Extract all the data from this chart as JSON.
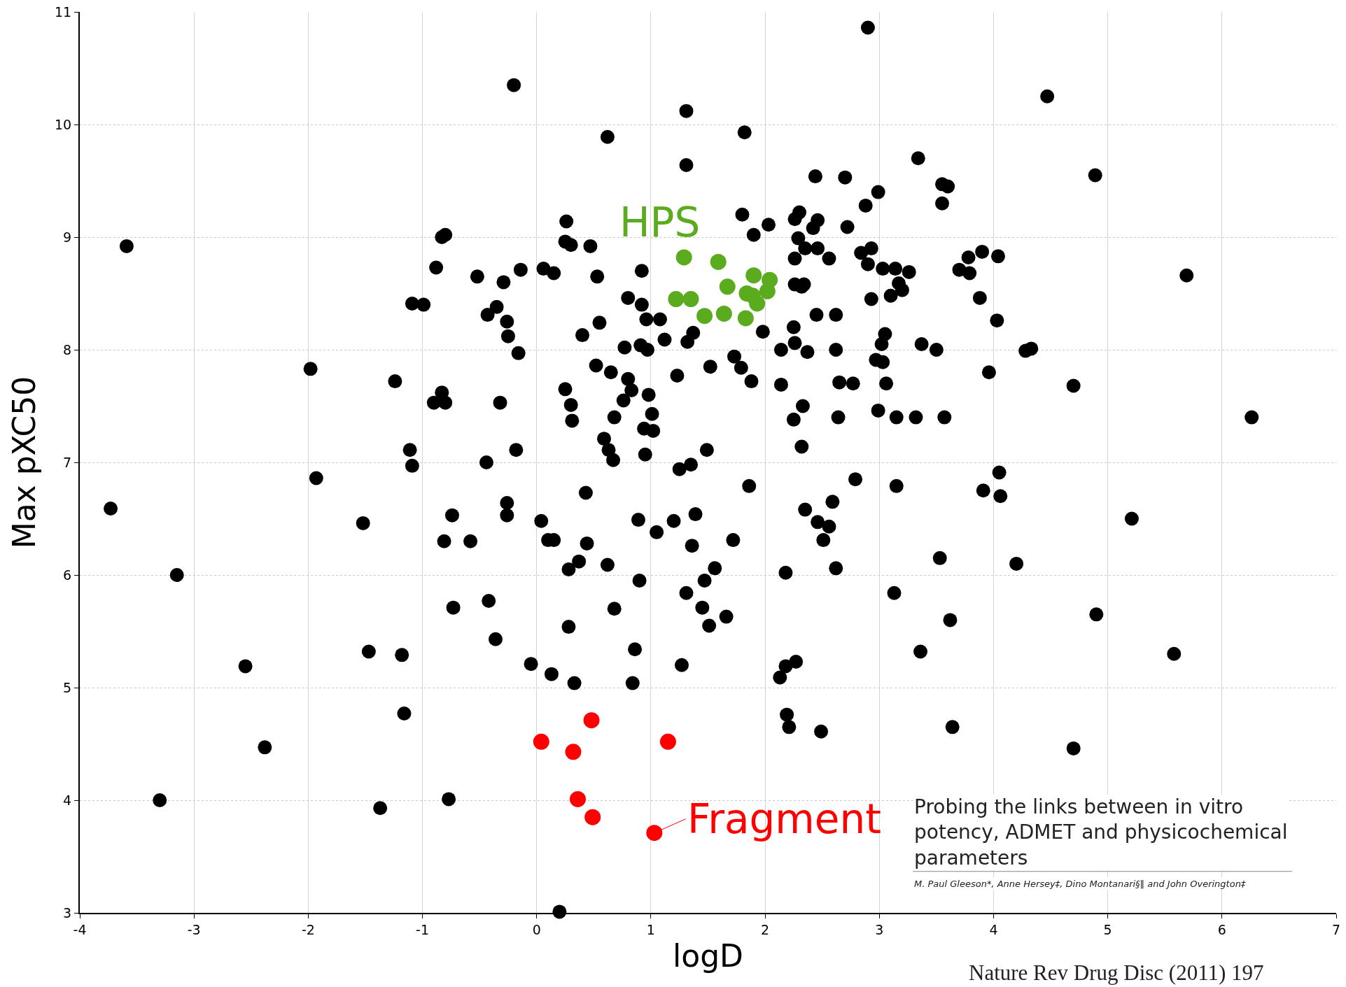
{
  "chart_data": {
    "type": "scatter",
    "xlabel": "logD",
    "ylabel": "Max pXC50",
    "xlim": [
      -4,
      7
    ],
    "xticks": [
      -4,
      -3,
      -2,
      -1,
      0,
      1,
      2,
      3,
      4,
      5,
      6,
      7
    ],
    "ylim": [
      3,
      11
    ],
    "yticks": [
      3,
      4,
      5,
      6,
      7,
      8,
      9,
      10,
      11
    ],
    "grid": true,
    "marker": "circle",
    "annotations": [
      "Probing the links between in vitro potency, ADMET and physicochemical parameters",
      "M. Paul Gleeson*, Anne Hersey‡, Dino Montanari§‖ and John Overington‡",
      "Nature Rev Drug Disc (2011) 197"
    ],
    "series": [
      {
        "color": "#000000",
        "x": [
          2.9,
          -0.2,
          4.47,
          1.31,
          0.62,
          1.82,
          1.31,
          3.34,
          4.89,
          2.44,
          2.7,
          2.99,
          3.55,
          3.6,
          3.55,
          2.88,
          -3.59,
          -0.8,
          -0.83,
          0.26,
          0.25,
          0.3,
          0.47,
          1.8,
          1.9,
          2.03,
          2.3,
          2.26,
          2.46,
          2.42,
          2.72,
          2.29,
          2.35,
          2.46,
          2.56,
          2.26,
          2.84,
          2.93,
          2.9,
          3.03,
          3.14,
          3.26,
          3.17,
          3.2,
          3.1,
          2.93,
          3.9,
          3.78,
          4.04,
          3.7,
          3.79,
          3.88,
          5.69,
          4.03,
          -0.88,
          -0.52,
          -0.29,
          -0.14,
          0.06,
          0.15,
          0.53,
          0.92,
          -1.09,
          -0.99,
          -0.35,
          -0.43,
          -0.26,
          -0.25,
          -0.16,
          0.8,
          0.92,
          0.55,
          0.4,
          0.96,
          1.08,
          1.12,
          0.91,
          0.77,
          0.97,
          1.37,
          1.32,
          1.98,
          2.25,
          2.45,
          2.62,
          2.32,
          2.34,
          2.26,
          3.05,
          3.02,
          3.37,
          3.5,
          4.28,
          4.33,
          3.96,
          4.7,
          6.26,
          2.14,
          2.26,
          2.37,
          2.62,
          2.97,
          3.03,
          3.06,
          2.65,
          2.77,
          2.14,
          1.73,
          1.79,
          1.88,
          1.52,
          1.23,
          -1.98,
          -1.24,
          -0.83,
          -0.9,
          -0.8,
          -0.32,
          0.52,
          0.65,
          0.8,
          0.83,
          0.76,
          0.98,
          0.25,
          0.3,
          0.31,
          0.68,
          1.01,
          0.94,
          1.02,
          0.95,
          0.59,
          0.63,
          0.67,
          1.49,
          1.25,
          1.35,
          2.33,
          2.25,
          2.32,
          2.64,
          2.99,
          3.15,
          3.32,
          3.57,
          -1.11,
          -1.09,
          -0.18,
          -0.44,
          -1.93,
          2.79,
          3.15,
          4.05,
          4.06,
          3.91,
          1.86,
          -3.73,
          0.43,
          -0.26,
          -0.26,
          -0.74,
          -1.52,
          -0.81,
          -0.58,
          0.04,
          0.1,
          0.15,
          0.44,
          0.89,
          1.05,
          1.2,
          1.39,
          1.36,
          1.72,
          2.35,
          2.46,
          2.56,
          2.51,
          2.59,
          2.62,
          2.18,
          3.53,
          4.2,
          5.21,
          -3.15,
          0.37,
          0.28,
          0.62,
          0.9,
          1.56,
          1.47,
          1.31,
          3.13,
          -0.73,
          -0.42,
          0.68,
          1.45,
          1.66,
          1.51,
          0.28,
          -0.36,
          3.62,
          4.9,
          -1.47,
          -1.18,
          -2.55,
          0.86,
          3.36,
          5.58,
          1.27,
          -0.05,
          0.13,
          0.33,
          0.84,
          2.27,
          2.18,
          2.13,
          -1.16,
          2.19,
          2.21,
          2.49,
          3.64,
          -2.38,
          4.7,
          -3.3,
          -1.37,
          -0.77,
          0.2
        ],
        "values": [
          10.86,
          10.35,
          10.25,
          10.12,
          9.89,
          9.93,
          9.64,
          9.7,
          9.55,
          9.54,
          9.53,
          9.4,
          9.47,
          9.45,
          9.3,
          9.28,
          8.92,
          9.02,
          9.0,
          9.14,
          8.96,
          8.93,
          8.92,
          9.2,
          9.02,
          9.11,
          9.22,
          9.16,
          9.15,
          9.08,
          9.09,
          8.99,
          8.9,
          8.9,
          8.81,
          8.81,
          8.86,
          8.9,
          8.76,
          8.72,
          8.72,
          8.69,
          8.59,
          8.53,
          8.48,
          8.45,
          8.87,
          8.82,
          8.83,
          8.71,
          8.68,
          8.46,
          8.66,
          8.26,
          8.73,
          8.65,
          8.6,
          8.71,
          8.72,
          8.68,
          8.65,
          8.7,
          8.41,
          8.4,
          8.38,
          8.31,
          8.25,
          8.12,
          7.97,
          8.46,
          8.4,
          8.24,
          8.13,
          8.27,
          8.27,
          8.09,
          8.04,
          8.02,
          8.0,
          8.15,
          8.07,
          8.16,
          8.2,
          8.31,
          8.31,
          8.56,
          8.58,
          8.58,
          8.14,
          8.05,
          8.05,
          8.0,
          7.99,
          8.01,
          7.8,
          7.68,
          7.4,
          8.0,
          8.06,
          7.98,
          8.0,
          7.91,
          7.89,
          7.7,
          7.71,
          7.7,
          7.69,
          7.94,
          7.84,
          7.72,
          7.85,
          7.77,
          7.83,
          7.72,
          7.62,
          7.53,
          7.53,
          7.53,
          7.86,
          7.8,
          7.74,
          7.64,
          7.55,
          7.6,
          7.65,
          7.51,
          7.37,
          7.4,
          7.43,
          7.3,
          7.28,
          7.07,
          7.21,
          7.11,
          7.02,
          7.11,
          6.94,
          6.98,
          7.5,
          7.38,
          7.14,
          7.4,
          7.46,
          7.4,
          7.4,
          7.4,
          7.11,
          6.97,
          7.11,
          7.0,
          6.86,
          6.85,
          6.79,
          6.91,
          6.7,
          6.75,
          6.79,
          6.59,
          6.73,
          6.64,
          6.53,
          6.53,
          6.46,
          6.3,
          6.3,
          6.48,
          6.31,
          6.31,
          6.28,
          6.49,
          6.38,
          6.48,
          6.54,
          6.26,
          6.31,
          6.58,
          6.47,
          6.43,
          6.31,
          6.65,
          6.06,
          6.02,
          6.15,
          6.1,
          6.5,
          6.0,
          6.12,
          6.05,
          6.09,
          5.95,
          6.06,
          5.95,
          5.84,
          5.84,
          5.71,
          5.77,
          5.7,
          5.71,
          5.63,
          5.55,
          5.54,
          5.43,
          5.6,
          5.65,
          5.32,
          5.29,
          5.19,
          5.34,
          5.32,
          5.3,
          5.2,
          5.21,
          5.12,
          5.04,
          5.04,
          5.23,
          5.19,
          5.09,
          4.77,
          4.76,
          4.65,
          4.61,
          4.65,
          4.47,
          4.46,
          4.0,
          3.93,
          4.01,
          3.01
        ]
      },
      {
        "name": "HPS",
        "color": "#5aac1e",
        "x": [
          1.29,
          1.59,
          1.22,
          1.35,
          1.67,
          1.9,
          2.04,
          1.84,
          2.02,
          1.93,
          1.47,
          1.64,
          1.83,
          1.89
        ],
        "values": [
          8.82,
          8.78,
          8.45,
          8.45,
          8.56,
          8.66,
          8.62,
          8.5,
          8.52,
          8.41,
          8.3,
          8.32,
          8.28,
          8.48
        ]
      },
      {
        "name": "Fragment",
        "color": "#ff0000",
        "x": [
          0.04,
          0.48,
          0.32,
          1.15,
          0.36,
          0.49,
          1.03
        ],
        "values": [
          4.52,
          4.71,
          4.43,
          4.52,
          4.01,
          3.85,
          3.71
        ]
      }
    ]
  }
}
